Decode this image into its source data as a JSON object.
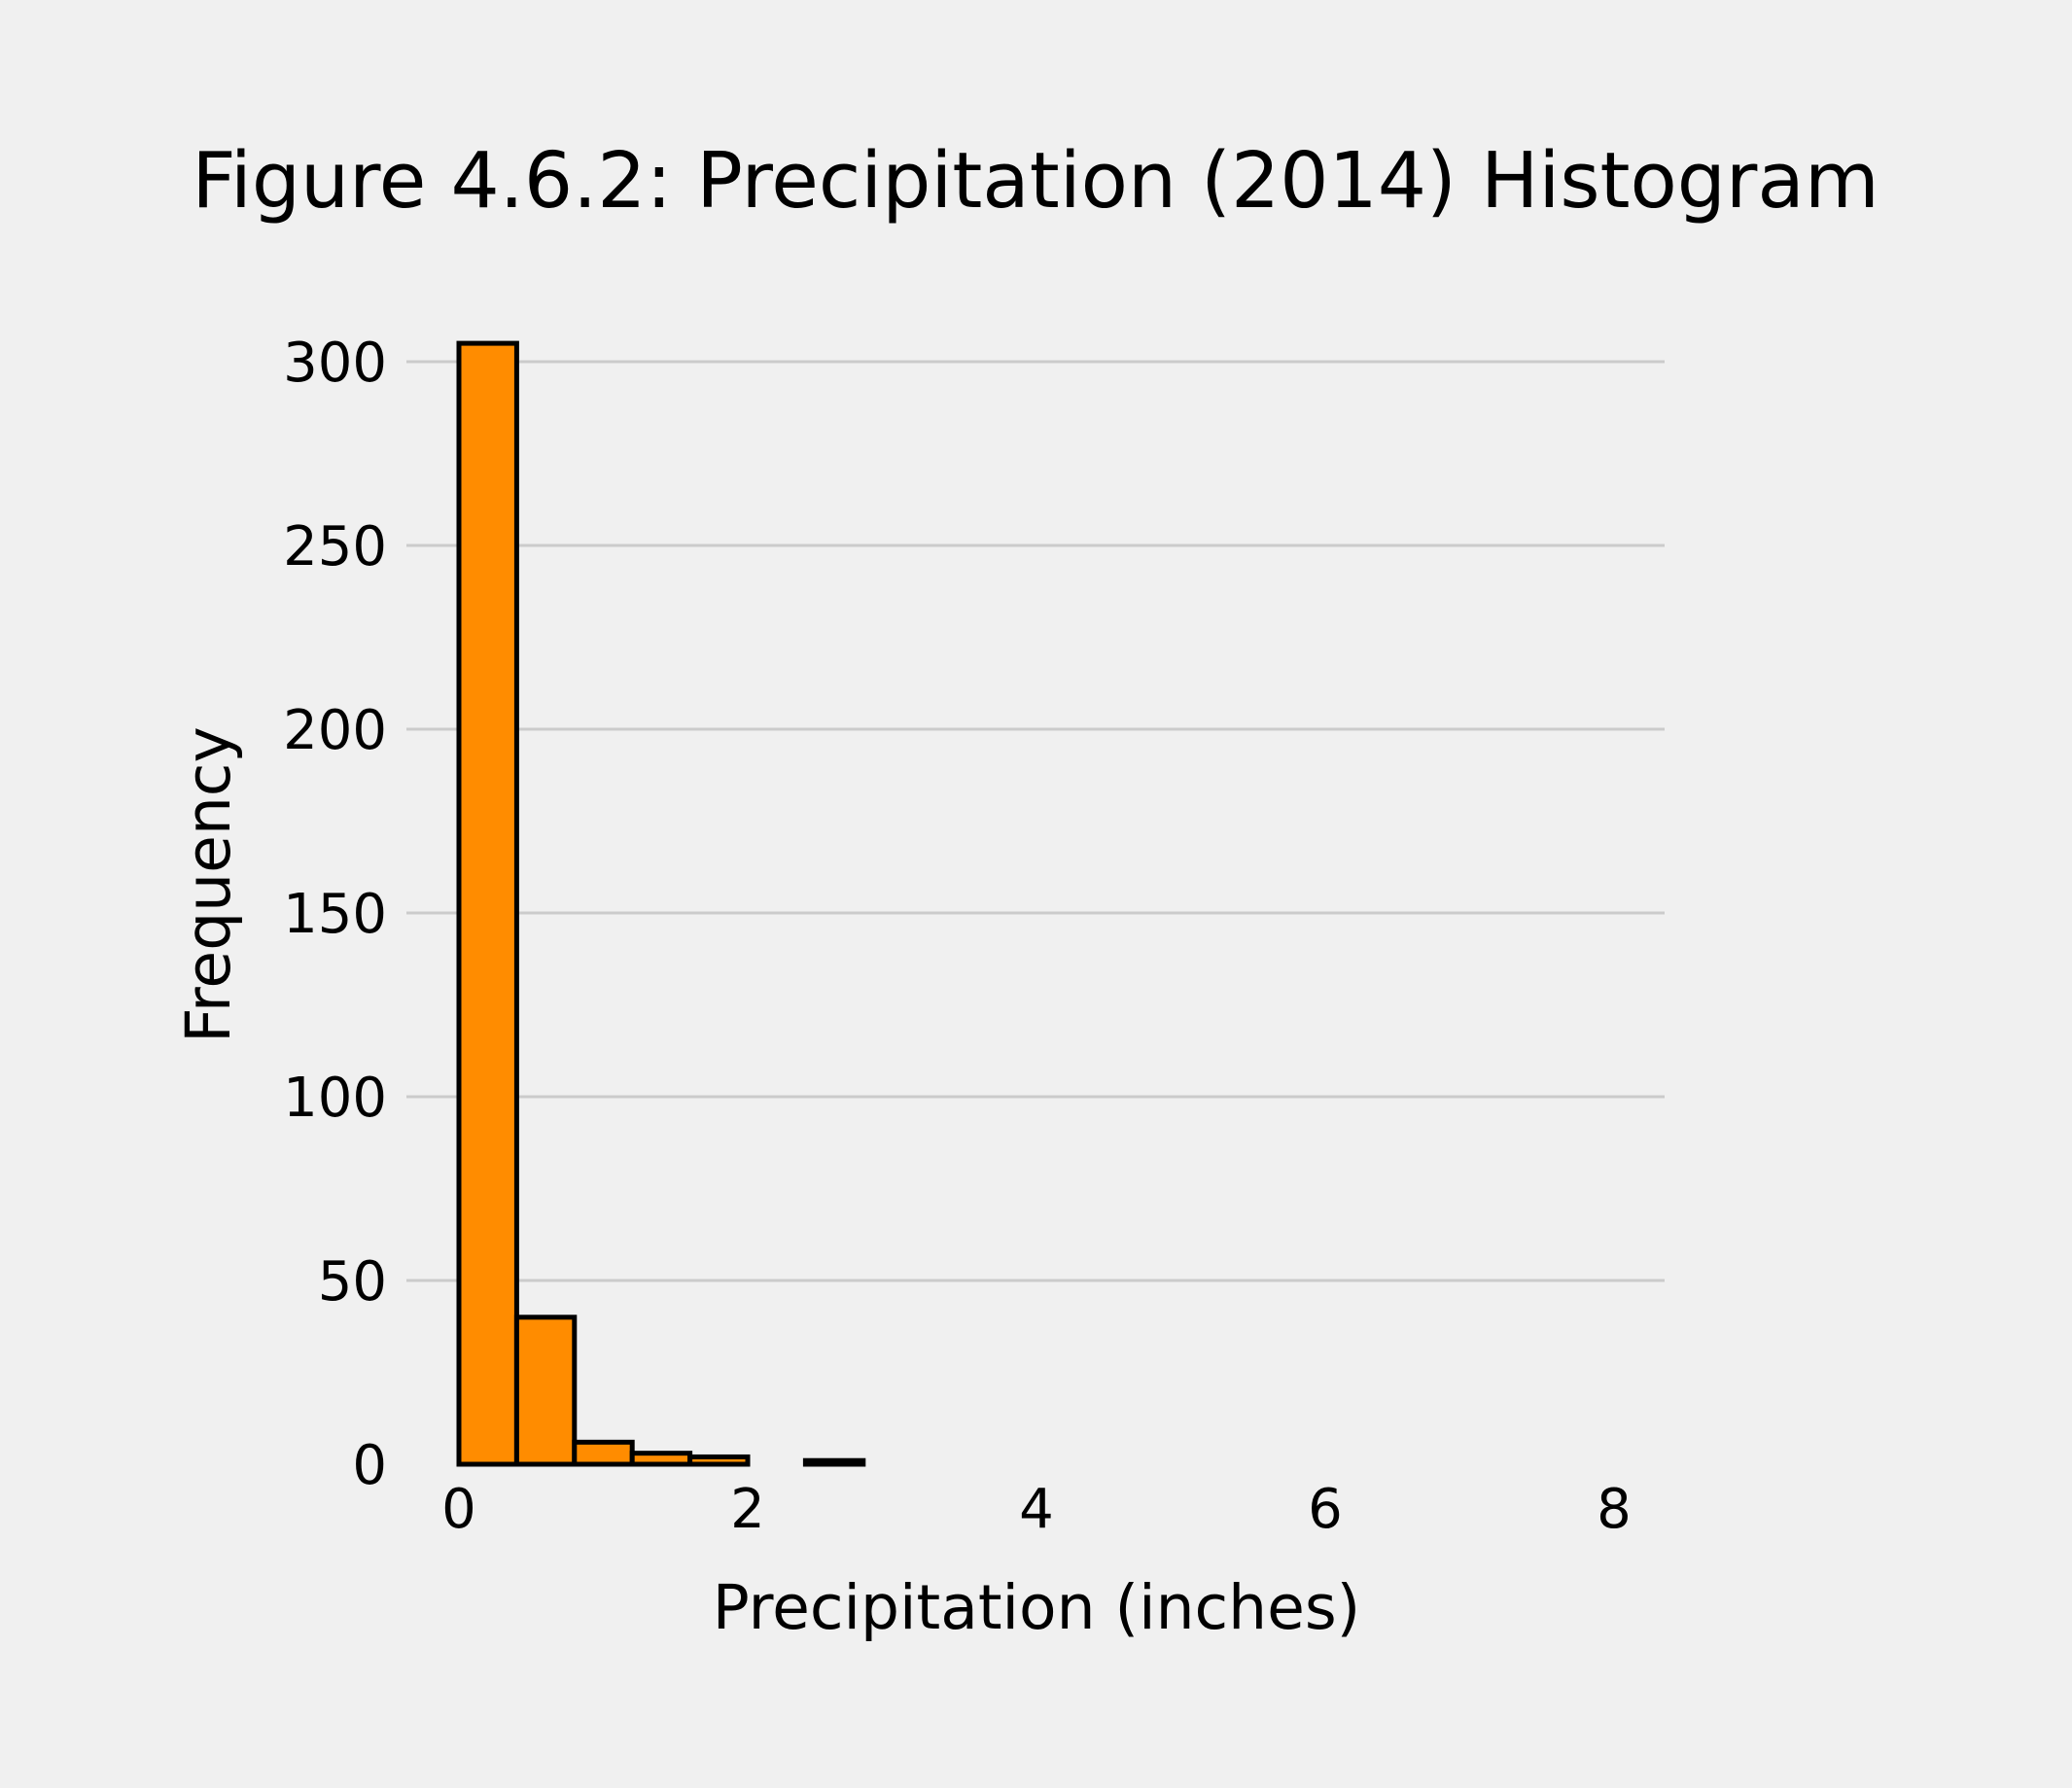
{
  "chart_data": {
    "type": "bar",
    "title": "Figure 4.6.2: Precipitation (2014) Histogram",
    "xlabel": "Precipitation (inches)",
    "ylabel": "Frequency",
    "xlim": [
      0,
      8
    ],
    "ylim": [
      0,
      300
    ],
    "xticks": [
      0,
      2,
      4,
      6,
      8
    ],
    "yticks": [
      0,
      50,
      100,
      150,
      200,
      250,
      300
    ],
    "grid": "horizontal",
    "bar_color": "#ff8c00",
    "edge_color": "#000000",
    "bins": [
      {
        "x0": 0.0,
        "x1": 0.4,
        "count": 305
      },
      {
        "x0": 0.4,
        "x1": 0.8,
        "count": 40
      },
      {
        "x0": 0.8,
        "x1": 1.2,
        "count": 6
      },
      {
        "x0": 1.2,
        "x1": 1.6,
        "count": 3
      },
      {
        "x0": 1.6,
        "x1": 2.0,
        "count": 2
      },
      {
        "x0": 2.0,
        "x1": 2.4,
        "count": 0
      },
      {
        "x0": 2.4,
        "x1": 2.8,
        "count": 1
      },
      {
        "x0": 2.8,
        "x1": 3.2,
        "count": 0
      },
      {
        "x0": 3.2,
        "x1": 3.6,
        "count": 0
      },
      {
        "x0": 3.6,
        "x1": 4.0,
        "count": 0
      },
      {
        "x0": 4.0,
        "x1": 4.4,
        "count": 0
      },
      {
        "x0": 4.4,
        "x1": 4.8,
        "count": 0
      },
      {
        "x0": 4.8,
        "x1": 5.2,
        "count": 0
      },
      {
        "x0": 5.2,
        "x1": 5.6,
        "count": 0
      },
      {
        "x0": 5.6,
        "x1": 6.0,
        "count": 0
      },
      {
        "x0": 6.0,
        "x1": 6.4,
        "count": 0
      },
      {
        "x0": 6.4,
        "x1": 6.8,
        "count": 0
      },
      {
        "x0": 6.8,
        "x1": 7.2,
        "count": 0
      },
      {
        "x0": 7.2,
        "x1": 7.6,
        "count": 0
      },
      {
        "x0": 7.6,
        "x1": 8.0,
        "count": 0
      }
    ]
  }
}
